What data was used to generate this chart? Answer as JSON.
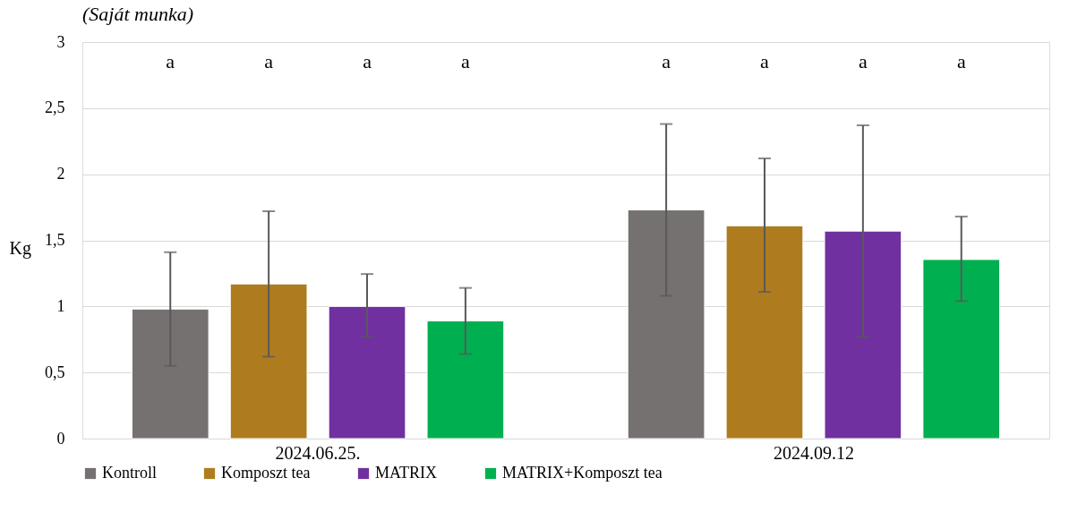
{
  "chart_data": {
    "type": "bar",
    "ylabel": "Kg",
    "categories": [
      "2024.06.25.",
      "2024.09.12"
    ],
    "series": [
      {
        "name": "Kontroll",
        "color": "#767171",
        "values": [
          0.98,
          1.73
        ],
        "errors": [
          [
            0.55,
            1.41
          ],
          [
            1.08,
            2.38
          ]
        ]
      },
      {
        "name": "Komposzt tea",
        "color": "#ae7c1e",
        "values": [
          1.17,
          1.61
        ],
        "errors": [
          [
            0.62,
            1.72
          ],
          [
            1.11,
            2.12
          ]
        ]
      },
      {
        "name": "MATRIX",
        "color": "#7030a0",
        "values": [
          1.0,
          1.57
        ],
        "errors": [
          [
            0.77,
            1.245
          ],
          [
            0.77,
            2.37
          ]
        ]
      },
      {
        "name": "MATRIX+Komposzt tea",
        "color": "#00b050",
        "values": [
          0.89,
          1.355
        ],
        "errors": [
          [
            0.64,
            1.14
          ],
          [
            1.04,
            1.68
          ]
        ]
      }
    ],
    "ylim": [
      0,
      3
    ],
    "yticks": [
      0,
      {
        "value": 0.5,
        "label": "0,5"
      },
      1,
      {
        "value": 1.5,
        "label": "1,5"
      },
      2,
      {
        "value": 2.5,
        "label": "2,5"
      },
      3
    ],
    "grid": "y",
    "legend": "bottom",
    "annotations": [
      "(Saját munka)",
      "a",
      "a",
      "a",
      "a",
      "a",
      "a",
      "a",
      "a"
    ]
  }
}
